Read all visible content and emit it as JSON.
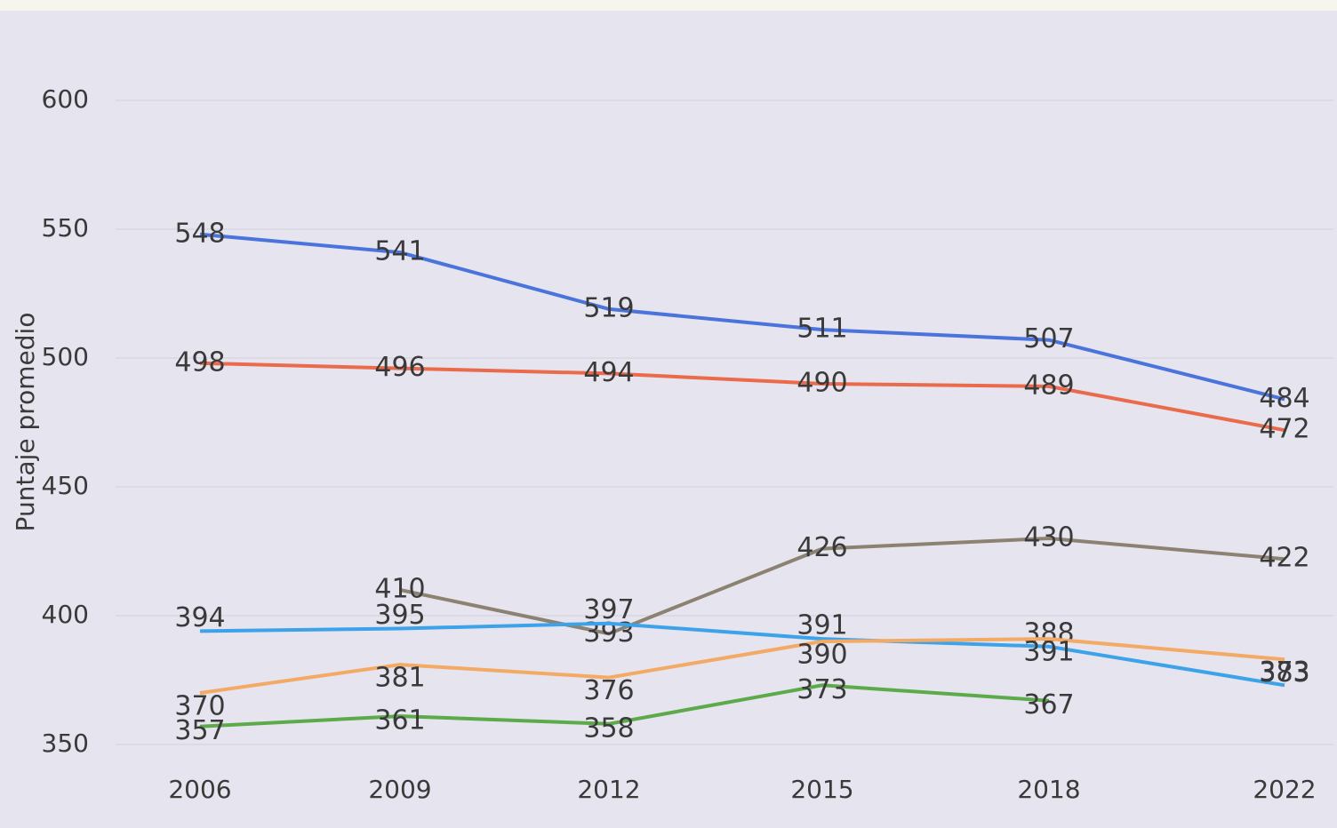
{
  "chart_data": {
    "type": "line",
    "y_label": "Puntaje promedio",
    "categories": [
      "2006",
      "2009",
      "2012",
      "2015",
      "2018",
      "2022"
    ],
    "series": [
      {
        "color": "#4a74dc",
        "values": [
          548,
          541,
          519,
          511,
          507,
          484
        ]
      },
      {
        "color": "#ea6a4c",
        "values": [
          498,
          496,
          494,
          490,
          489,
          472
        ]
      },
      {
        "color": "#8c8272",
        "values": [
          null,
          410,
          393,
          426,
          430,
          422
        ]
      },
      {
        "color": "#3ca2ea",
        "values": [
          394,
          395,
          397,
          391,
          388,
          373
        ]
      },
      {
        "color": "#f2aa64",
        "values": [
          370,
          381,
          376,
          390,
          391,
          383
        ]
      },
      {
        "color": "#5caa4a",
        "values": [
          357,
          361,
          358,
          373,
          367,
          null
        ]
      }
    ],
    "ylim": [
      350,
      600
    ],
    "yticks": [
      350,
      400,
      450,
      500,
      550,
      600
    ],
    "grid": true
  }
}
